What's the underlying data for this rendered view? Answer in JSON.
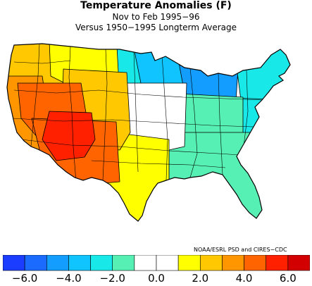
{
  "header": {
    "title": "Temperature Anomalies (F)",
    "period": "Nov to Feb 1995−96",
    "baseline": "Versus 1950−1995 Longterm Average"
  },
  "credit": "NOAA/ESRL PSD and CIRES−CDC",
  "legend": {
    "colors": [
      "#1a3dff",
      "#1b6bff",
      "#139dff",
      "#10c4ff",
      "#18e8e8",
      "#57f0b4",
      "#ffffff",
      "#ffffff",
      "#ffff00",
      "#ffc800",
      "#ff9600",
      "#ff6400",
      "#ff2000",
      "#d20000"
    ],
    "tick_labels": [
      "−6.0",
      "−4.0",
      "−2.0",
      "0.0",
      "2.0",
      "4.0",
      "6.0"
    ]
  },
  "regions": [
    {
      "name": "pacific-northwest",
      "color": "#ffc800"
    },
    {
      "name": "northern-rockies",
      "color": "#ffff00"
    },
    {
      "name": "northern-plains",
      "color": "#18e8e8"
    },
    {
      "name": "upper-midwest",
      "color": "#10c4ff"
    },
    {
      "name": "great-lakes",
      "color": "#139dff"
    },
    {
      "name": "northeast",
      "color": "#18e8e8"
    },
    {
      "name": "mid-atlantic",
      "color": "#18e8e8"
    },
    {
      "name": "ohio-valley",
      "color": "#57f0b4"
    },
    {
      "name": "southeast",
      "color": "#57f0b4"
    },
    {
      "name": "central-plains",
      "color": "#ffffff"
    },
    {
      "name": "southern-plains",
      "color": "#ffff00"
    },
    {
      "name": "colorado-wyoming",
      "color": "#ffc800"
    },
    {
      "name": "california",
      "color": "#ff9600"
    },
    {
      "name": "great-basin",
      "color": "#ff6400"
    },
    {
      "name": "southwest",
      "color": "#ff6400"
    },
    {
      "name": "nevada-utah-hotspot",
      "color": "#ff2000"
    }
  ]
}
